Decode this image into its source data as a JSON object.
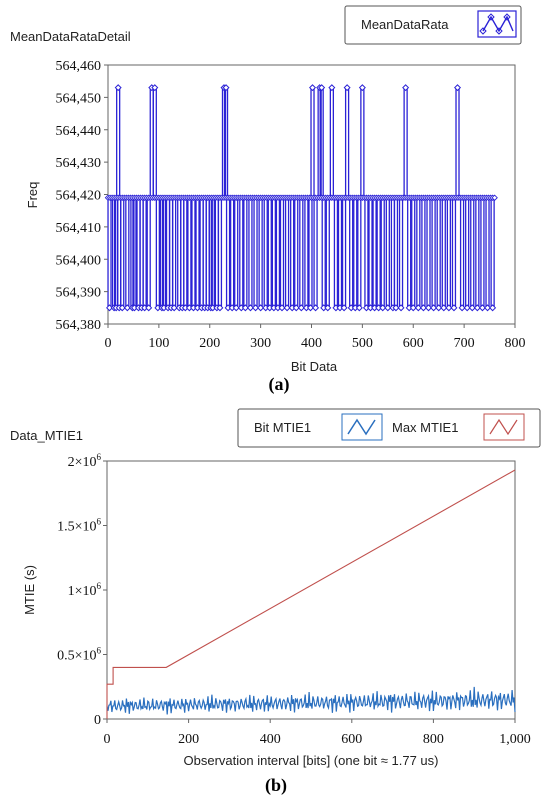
{
  "chart_data": [
    {
      "type": "line",
      "title": "MeanDataRataDetail",
      "xlabel": "Bit Data",
      "ylabel": "Freq",
      "xlim": [
        0,
        800
      ],
      "ylim": [
        564380,
        564460
      ],
      "x_ticks": [
        0,
        100,
        200,
        300,
        400,
        500,
        600,
        700,
        800
      ],
      "y_ticks": [
        564380,
        564390,
        564400,
        564410,
        564420,
        564430,
        564440,
        564450,
        564460
      ],
      "x_tick_labels": [
        "0",
        "100",
        "200",
        "300",
        "400",
        "500",
        "600",
        "700",
        "800"
      ],
      "y_tick_labels": [
        "564,380",
        "564,390",
        "564,400",
        "564,410",
        "564,420",
        "564,430",
        "564,440",
        "564,450",
        "564,460"
      ],
      "legend": {
        "placement": "top-right",
        "entries": [
          "MeanDataRata"
        ]
      },
      "series": [
        {
          "name": "MeanDataRata",
          "color": "#2b22d6",
          "marker": "diamond-open",
          "baseline": 564419,
          "high_value": 564453,
          "low_value": 564385,
          "x_range": [
            0,
            760
          ],
          "high_x": [
            20,
            86,
            92,
            228,
            232,
            402,
            416,
            420,
            440,
            470,
            500,
            585,
            687
          ],
          "low_x": [
            3,
            12,
            16,
            22,
            28,
            38,
            48,
            52,
            60,
            66,
            72,
            80,
            98,
            106,
            110,
            118,
            124,
            130,
            140,
            146,
            152,
            160,
            168,
            176,
            184,
            190,
            196,
            202,
            206,
            214,
            220,
            236,
            244,
            252,
            262,
            270,
            280,
            290,
            300,
            310,
            318,
            326,
            334,
            342,
            352,
            362,
            370,
            380,
            390,
            398,
            408,
            424,
            432,
            448,
            456,
            464,
            478,
            486,
            494,
            508,
            516,
            524,
            532,
            540,
            550,
            560,
            566,
            576,
            592,
            600,
            610,
            620,
            630,
            640,
            650,
            660,
            670,
            680,
            696,
            706,
            716,
            726,
            736,
            746,
            756
          ]
        }
      ],
      "caption": "(a)"
    },
    {
      "type": "line",
      "title": "Data_MTIE1",
      "xlabel": "Observation interval [bits] (one bit ≈ 1.77 us)",
      "ylabel": "MTIE  (s)",
      "xlim": [
        0,
        1000
      ],
      "ylim": [
        0,
        2000000
      ],
      "x_ticks": [
        0,
        200,
        400,
        600,
        800,
        1000
      ],
      "y_ticks": [
        0,
        500000,
        1000000,
        1500000,
        2000000
      ],
      "x_tick_labels": [
        "0",
        "200",
        "400",
        "600",
        "800",
        "1,000"
      ],
      "y_tick_labels": [
        "0",
        "0.5×10",
        "1×10",
        "1.5×10",
        "2×10"
      ],
      "y_tick_exponent": "6",
      "legend": {
        "placement": "top-right",
        "entries": [
          "Bit MTIE1",
          "Max MTIE1"
        ]
      },
      "series": [
        {
          "name": "Bit MTIE1",
          "color": "#2a6fbf",
          "style": "oscillating",
          "x_range": [
            0,
            1000
          ],
          "mean_start": 100000,
          "mean_end": 150000,
          "amplitude_start": 60000,
          "amplitude_end": 90000
        },
        {
          "name": "Max MTIE1",
          "color": "#c0504d",
          "x": [
            0,
            0,
            15,
            15,
            145,
            1000
          ],
          "y": [
            0,
            270000,
            270000,
            400000,
            400000,
            1930000
          ]
        }
      ],
      "caption": "(b)"
    }
  ]
}
